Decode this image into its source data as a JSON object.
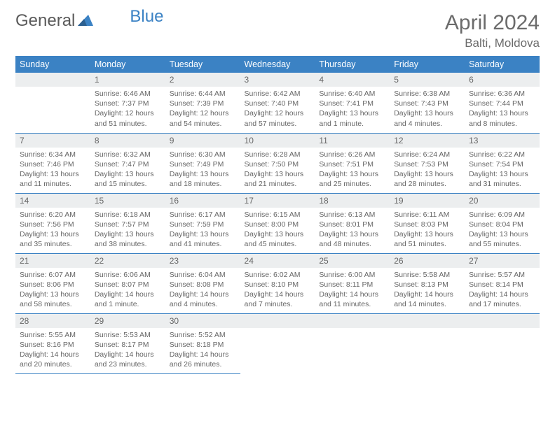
{
  "brand": {
    "part1": "General",
    "part2": "Blue"
  },
  "title": "April 2024",
  "location": "Balti, Moldova",
  "weekdays": [
    "Sunday",
    "Monday",
    "Tuesday",
    "Wednesday",
    "Thursday",
    "Friday",
    "Saturday"
  ],
  "colors": {
    "header_bg": "#3b82c4",
    "header_text": "#ffffff",
    "daynum_bg": "#eceeef",
    "border": "#3b82c4",
    "text": "#666666"
  },
  "grid": [
    [
      {
        "n": "",
        "sr": "",
        "ss": "",
        "dl": ""
      },
      {
        "n": "1",
        "sr": "6:46 AM",
        "ss": "7:37 PM",
        "dl": "12 hours and 51 minutes."
      },
      {
        "n": "2",
        "sr": "6:44 AM",
        "ss": "7:39 PM",
        "dl": "12 hours and 54 minutes."
      },
      {
        "n": "3",
        "sr": "6:42 AM",
        "ss": "7:40 PM",
        "dl": "12 hours and 57 minutes."
      },
      {
        "n": "4",
        "sr": "6:40 AM",
        "ss": "7:41 PM",
        "dl": "13 hours and 1 minute."
      },
      {
        "n": "5",
        "sr": "6:38 AM",
        "ss": "7:43 PM",
        "dl": "13 hours and 4 minutes."
      },
      {
        "n": "6",
        "sr": "6:36 AM",
        "ss": "7:44 PM",
        "dl": "13 hours and 8 minutes."
      }
    ],
    [
      {
        "n": "7",
        "sr": "6:34 AM",
        "ss": "7:46 PM",
        "dl": "13 hours and 11 minutes."
      },
      {
        "n": "8",
        "sr": "6:32 AM",
        "ss": "7:47 PM",
        "dl": "13 hours and 15 minutes."
      },
      {
        "n": "9",
        "sr": "6:30 AM",
        "ss": "7:49 PM",
        "dl": "13 hours and 18 minutes."
      },
      {
        "n": "10",
        "sr": "6:28 AM",
        "ss": "7:50 PM",
        "dl": "13 hours and 21 minutes."
      },
      {
        "n": "11",
        "sr": "6:26 AM",
        "ss": "7:51 PM",
        "dl": "13 hours and 25 minutes."
      },
      {
        "n": "12",
        "sr": "6:24 AM",
        "ss": "7:53 PM",
        "dl": "13 hours and 28 minutes."
      },
      {
        "n": "13",
        "sr": "6:22 AM",
        "ss": "7:54 PM",
        "dl": "13 hours and 31 minutes."
      }
    ],
    [
      {
        "n": "14",
        "sr": "6:20 AM",
        "ss": "7:56 PM",
        "dl": "13 hours and 35 minutes."
      },
      {
        "n": "15",
        "sr": "6:18 AM",
        "ss": "7:57 PM",
        "dl": "13 hours and 38 minutes."
      },
      {
        "n": "16",
        "sr": "6:17 AM",
        "ss": "7:59 PM",
        "dl": "13 hours and 41 minutes."
      },
      {
        "n": "17",
        "sr": "6:15 AM",
        "ss": "8:00 PM",
        "dl": "13 hours and 45 minutes."
      },
      {
        "n": "18",
        "sr": "6:13 AM",
        "ss": "8:01 PM",
        "dl": "13 hours and 48 minutes."
      },
      {
        "n": "19",
        "sr": "6:11 AM",
        "ss": "8:03 PM",
        "dl": "13 hours and 51 minutes."
      },
      {
        "n": "20",
        "sr": "6:09 AM",
        "ss": "8:04 PM",
        "dl": "13 hours and 55 minutes."
      }
    ],
    [
      {
        "n": "21",
        "sr": "6:07 AM",
        "ss": "8:06 PM",
        "dl": "13 hours and 58 minutes."
      },
      {
        "n": "22",
        "sr": "6:06 AM",
        "ss": "8:07 PM",
        "dl": "14 hours and 1 minute."
      },
      {
        "n": "23",
        "sr": "6:04 AM",
        "ss": "8:08 PM",
        "dl": "14 hours and 4 minutes."
      },
      {
        "n": "24",
        "sr": "6:02 AM",
        "ss": "8:10 PM",
        "dl": "14 hours and 7 minutes."
      },
      {
        "n": "25",
        "sr": "6:00 AM",
        "ss": "8:11 PM",
        "dl": "14 hours and 11 minutes."
      },
      {
        "n": "26",
        "sr": "5:58 AM",
        "ss": "8:13 PM",
        "dl": "14 hours and 14 minutes."
      },
      {
        "n": "27",
        "sr": "5:57 AM",
        "ss": "8:14 PM",
        "dl": "14 hours and 17 minutes."
      }
    ],
    [
      {
        "n": "28",
        "sr": "5:55 AM",
        "ss": "8:16 PM",
        "dl": "14 hours and 20 minutes."
      },
      {
        "n": "29",
        "sr": "5:53 AM",
        "ss": "8:17 PM",
        "dl": "14 hours and 23 minutes."
      },
      {
        "n": "30",
        "sr": "5:52 AM",
        "ss": "8:18 PM",
        "dl": "14 hours and 26 minutes."
      },
      {
        "n": "",
        "sr": "",
        "ss": "",
        "dl": ""
      },
      {
        "n": "",
        "sr": "",
        "ss": "",
        "dl": ""
      },
      {
        "n": "",
        "sr": "",
        "ss": "",
        "dl": ""
      },
      {
        "n": "",
        "sr": "",
        "ss": "",
        "dl": ""
      }
    ]
  ],
  "labels": {
    "sunrise": "Sunrise: ",
    "sunset": "Sunset: ",
    "daylight": "Daylight: "
  }
}
